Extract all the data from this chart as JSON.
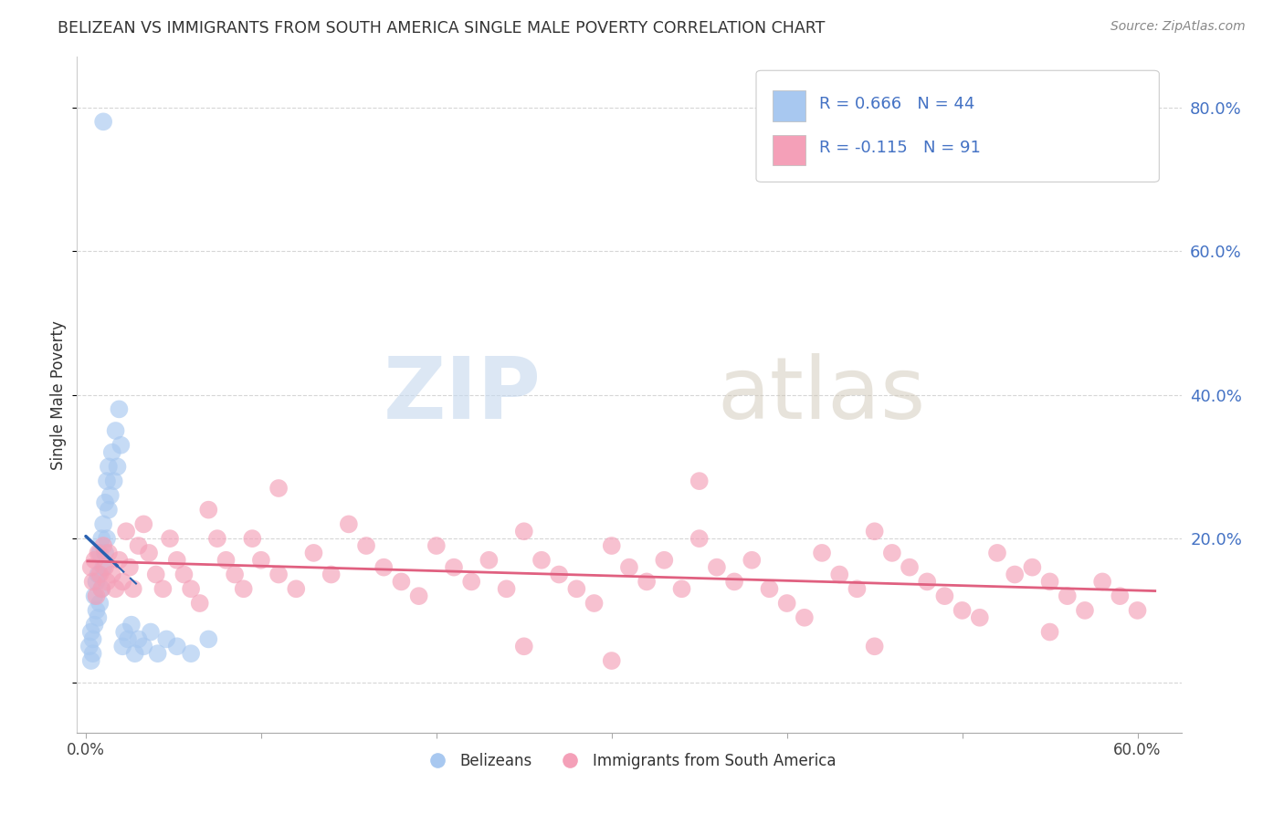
{
  "title": "BELIZEAN VS IMMIGRANTS FROM SOUTH AMERICA SINGLE MALE POVERTY CORRELATION CHART",
  "source": "Source: ZipAtlas.com",
  "ylabel": "Single Male Poverty",
  "blue_R": 0.666,
  "blue_N": 44,
  "pink_R": -0.115,
  "pink_N": 91,
  "blue_color": "#A8C8F0",
  "pink_color": "#F4A0B8",
  "blue_line_color": "#2860B0",
  "pink_line_color": "#E06080",
  "background_color": "#FFFFFF",
  "watermark_zip": "ZIP",
  "watermark_atlas": "atlas",
  "xlim": [
    -0.005,
    0.625
  ],
  "ylim": [
    -0.07,
    0.87
  ],
  "blue_scatter_x": [
    0.002,
    0.003,
    0.003,
    0.004,
    0.004,
    0.005,
    0.005,
    0.006,
    0.006,
    0.007,
    0.007,
    0.008,
    0.008,
    0.009,
    0.009,
    0.01,
    0.01,
    0.011,
    0.011,
    0.012,
    0.012,
    0.013,
    0.013,
    0.014,
    0.015,
    0.016,
    0.017,
    0.018,
    0.019,
    0.02,
    0.021,
    0.022,
    0.024,
    0.026,
    0.028,
    0.03,
    0.033,
    0.037,
    0.041,
    0.046,
    0.052,
    0.06,
    0.07,
    0.01
  ],
  "blue_scatter_y": [
    0.05,
    0.07,
    0.03,
    0.06,
    0.04,
    0.08,
    0.12,
    0.1,
    0.14,
    0.09,
    0.15,
    0.11,
    0.18,
    0.13,
    0.2,
    0.16,
    0.22,
    0.18,
    0.25,
    0.2,
    0.28,
    0.24,
    0.3,
    0.26,
    0.32,
    0.28,
    0.35,
    0.3,
    0.38,
    0.33,
    0.05,
    0.07,
    0.06,
    0.08,
    0.04,
    0.06,
    0.05,
    0.07,
    0.04,
    0.06,
    0.05,
    0.04,
    0.06,
    0.78
  ],
  "pink_scatter_x": [
    0.003,
    0.004,
    0.005,
    0.006,
    0.007,
    0.008,
    0.009,
    0.01,
    0.011,
    0.012,
    0.013,
    0.015,
    0.017,
    0.019,
    0.021,
    0.023,
    0.025,
    0.027,
    0.03,
    0.033,
    0.036,
    0.04,
    0.044,
    0.048,
    0.052,
    0.056,
    0.06,
    0.065,
    0.07,
    0.075,
    0.08,
    0.085,
    0.09,
    0.095,
    0.1,
    0.11,
    0.12,
    0.13,
    0.14,
    0.15,
    0.16,
    0.17,
    0.18,
    0.19,
    0.2,
    0.21,
    0.22,
    0.23,
    0.24,
    0.25,
    0.26,
    0.27,
    0.28,
    0.29,
    0.3,
    0.31,
    0.32,
    0.33,
    0.34,
    0.35,
    0.36,
    0.37,
    0.38,
    0.39,
    0.4,
    0.41,
    0.42,
    0.43,
    0.44,
    0.45,
    0.46,
    0.47,
    0.48,
    0.49,
    0.5,
    0.51,
    0.52,
    0.53,
    0.54,
    0.55,
    0.56,
    0.57,
    0.58,
    0.59,
    0.6,
    0.11,
    0.25,
    0.35,
    0.45,
    0.55,
    0.3
  ],
  "pink_scatter_y": [
    0.16,
    0.14,
    0.17,
    0.12,
    0.18,
    0.15,
    0.13,
    0.19,
    0.16,
    0.14,
    0.18,
    0.15,
    0.13,
    0.17,
    0.14,
    0.21,
    0.16,
    0.13,
    0.19,
    0.22,
    0.18,
    0.15,
    0.13,
    0.2,
    0.17,
    0.15,
    0.13,
    0.11,
    0.24,
    0.2,
    0.17,
    0.15,
    0.13,
    0.2,
    0.17,
    0.15,
    0.13,
    0.18,
    0.15,
    0.22,
    0.19,
    0.16,
    0.14,
    0.12,
    0.19,
    0.16,
    0.14,
    0.17,
    0.13,
    0.21,
    0.17,
    0.15,
    0.13,
    0.11,
    0.19,
    0.16,
    0.14,
    0.17,
    0.13,
    0.2,
    0.16,
    0.14,
    0.17,
    0.13,
    0.11,
    0.09,
    0.18,
    0.15,
    0.13,
    0.21,
    0.18,
    0.16,
    0.14,
    0.12,
    0.1,
    0.09,
    0.18,
    0.15,
    0.16,
    0.14,
    0.12,
    0.1,
    0.14,
    0.12,
    0.1,
    0.27,
    0.05,
    0.28,
    0.05,
    0.07,
    0.03
  ]
}
